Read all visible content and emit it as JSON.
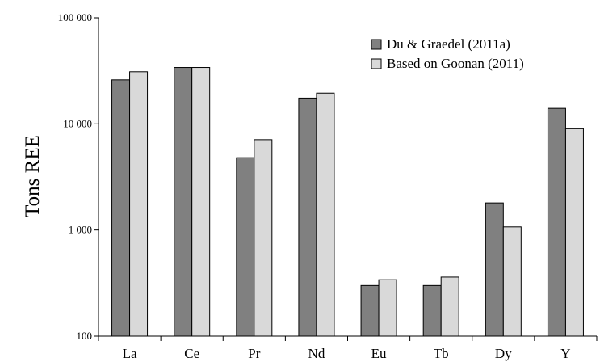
{
  "chart_data": {
    "type": "bar",
    "yscale": "log",
    "ylabel": "Tons REE",
    "xlabel": "",
    "title": "",
    "ylim": [
      100,
      100000
    ],
    "yticks": [
      {
        "value": 100,
        "label": "100"
      },
      {
        "value": 1000,
        "label": "1 000"
      },
      {
        "value": 10000,
        "label": "10 000"
      },
      {
        "value": 100000,
        "label": "100 000"
      }
    ],
    "categories": [
      "La",
      "Ce",
      "Pr",
      "Nd",
      "Eu",
      "Tb",
      "Dy",
      "Y"
    ],
    "series": [
      {
        "name": "Du & Graedel (2011a)",
        "color": "#808080",
        "values": [
          26000,
          34000,
          4800,
          17500,
          300,
          300,
          1800,
          14000
        ]
      },
      {
        "name": "Based on Goonan (2011)",
        "color": "#d9d9d9",
        "values": [
          31000,
          34000,
          7100,
          19500,
          340,
          360,
          1070,
          9000
        ]
      }
    ],
    "legend": "top-right",
    "grid": false
  }
}
